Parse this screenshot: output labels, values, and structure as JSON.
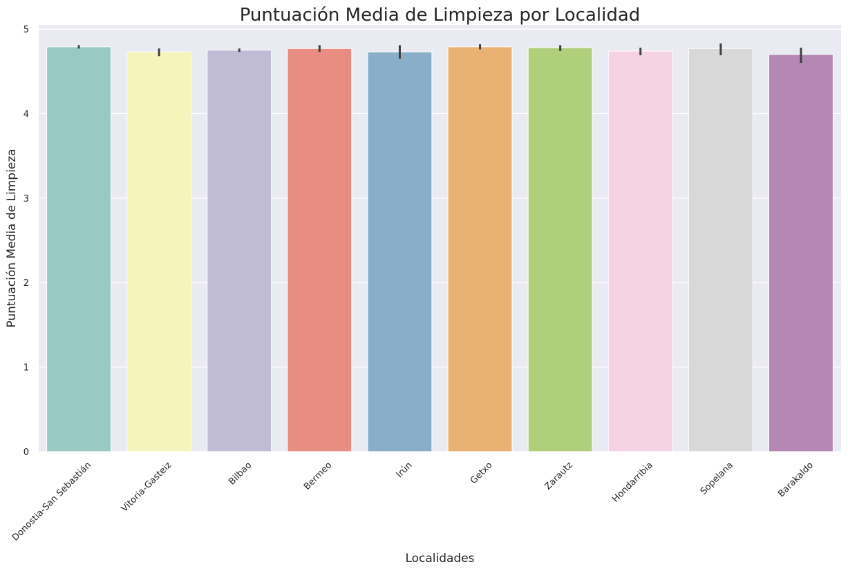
{
  "chart_data": {
    "type": "bar",
    "title": "Puntuación Media de Limpieza por Localidad",
    "xlabel": "Localidades",
    "ylabel": "Puntuación Media de Limpieza",
    "ylim": [
      0,
      5.05
    ],
    "yticks": [
      0,
      1,
      2,
      3,
      4,
      5
    ],
    "grid": true,
    "background": "#EAEAF2",
    "error_bar_color": "#3F3F3F",
    "categories": [
      "Donostia-San Sebastián",
      "Vitoria-Gasteiz",
      "Bilbao",
      "Bermeo",
      "Irún",
      "Getxo",
      "Zarautz",
      "Hondarribia",
      "Sopelana",
      "Barakaldo"
    ],
    "values": [
      4.79,
      4.73,
      4.75,
      4.77,
      4.73,
      4.79,
      4.78,
      4.74,
      4.77,
      4.7
    ],
    "error_low": [
      4.77,
      4.68,
      4.73,
      4.73,
      4.65,
      4.76,
      4.74,
      4.69,
      4.69,
      4.6
    ],
    "error_high": [
      4.81,
      4.77,
      4.77,
      4.81,
      4.81,
      4.82,
      4.81,
      4.78,
      4.83,
      4.78
    ],
    "colors": [
      "#98C9C2",
      "#F5F4BA",
      "#C1BCD5",
      "#E98C82",
      "#89AFC8",
      "#E9B274",
      "#B0CF7A",
      "#F5D3E3",
      "#D8D8D8",
      "#B587B5"
    ]
  }
}
